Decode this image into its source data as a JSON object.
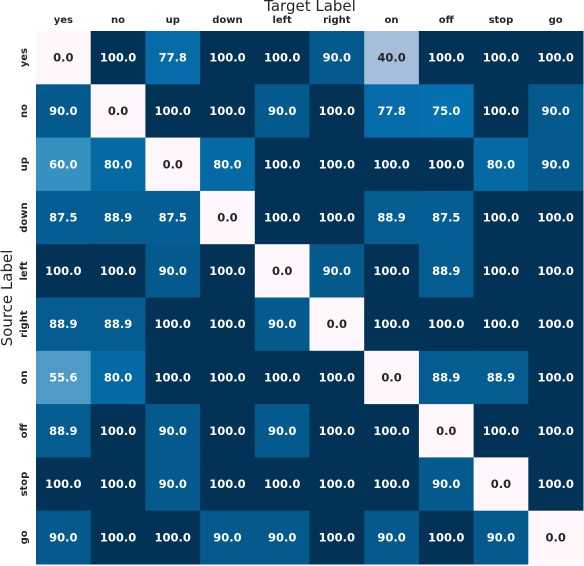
{
  "chart_data": {
    "type": "heatmap",
    "xlabel": "Target Label",
    "ylabel": "Source Label",
    "x_categories": [
      "yes",
      "no",
      "up",
      "down",
      "left",
      "right",
      "on",
      "off",
      "stop",
      "go"
    ],
    "y_categories": [
      "yes",
      "no",
      "up",
      "down",
      "left",
      "right",
      "on",
      "off",
      "stop",
      "go"
    ],
    "value_range": [
      0,
      100
    ],
    "colormap": "white-to-dark-blue",
    "values": [
      [
        0.0,
        100.0,
        77.8,
        100.0,
        100.0,
        90.0,
        40.0,
        100.0,
        100.0,
        100.0
      ],
      [
        90.0,
        0.0,
        100.0,
        100.0,
        90.0,
        100.0,
        77.8,
        75.0,
        100.0,
        90.0
      ],
      [
        60.0,
        80.0,
        0.0,
        80.0,
        100.0,
        100.0,
        100.0,
        100.0,
        80.0,
        90.0
      ],
      [
        87.5,
        88.9,
        87.5,
        0.0,
        100.0,
        100.0,
        88.9,
        87.5,
        100.0,
        100.0
      ],
      [
        100.0,
        100.0,
        90.0,
        100.0,
        0.0,
        90.0,
        100.0,
        88.9,
        100.0,
        100.0
      ],
      [
        88.9,
        88.9,
        100.0,
        100.0,
        90.0,
        0.0,
        100.0,
        100.0,
        100.0,
        100.0
      ],
      [
        55.6,
        80.0,
        100.0,
        100.0,
        100.0,
        100.0,
        0.0,
        88.9,
        88.9,
        100.0
      ],
      [
        88.9,
        100.0,
        90.0,
        100.0,
        90.0,
        100.0,
        100.0,
        0.0,
        100.0,
        100.0
      ],
      [
        100.0,
        100.0,
        90.0,
        100.0,
        100.0,
        100.0,
        100.0,
        90.0,
        0.0,
        100.0
      ],
      [
        90.0,
        100.0,
        100.0,
        90.0,
        90.0,
        100.0,
        90.0,
        100.0,
        90.0,
        0.0
      ]
    ],
    "grid": false,
    "legend": "none"
  }
}
